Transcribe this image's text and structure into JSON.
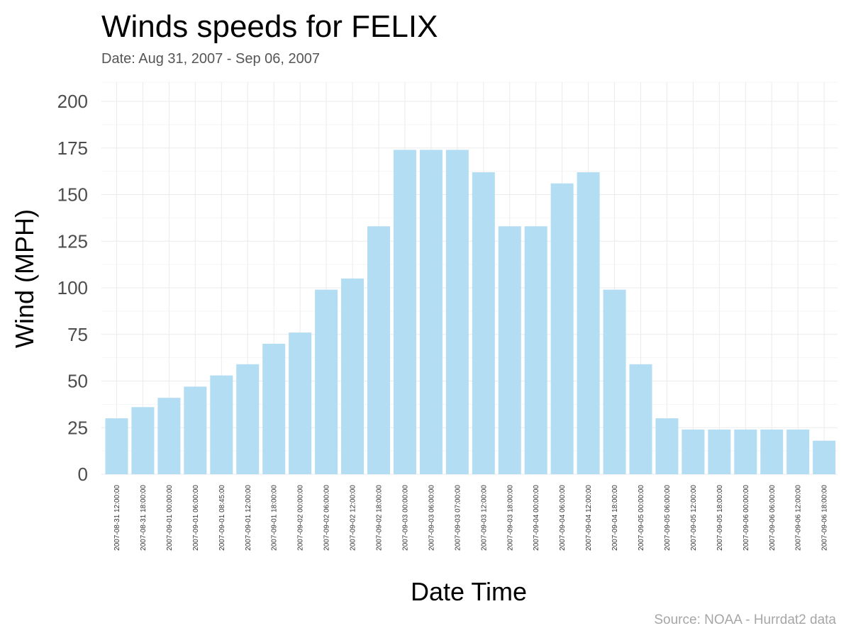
{
  "chart_data": {
    "type": "bar",
    "title": "Winds speeds for FELIX",
    "subtitle": "Date:  Aug 31, 2007 - Sep 06, 2007",
    "xlabel": "Date Time",
    "ylabel": "Wind (MPH)",
    "caption": "Source: NOAA - Hurrdat2 data",
    "ylim": [
      0,
      200
    ],
    "yticks": [
      0,
      25,
      50,
      75,
      100,
      125,
      150,
      175,
      200
    ],
    "grid": true,
    "bar_color": "#b3ddf2",
    "categories": [
      "2007-08-31 12:00:00",
      "2007-08-31 18:00:00",
      "2007-09-01 00:00:00",
      "2007-09-01 06:00:00",
      "2007-09-01 08:45:00",
      "2007-09-01 12:00:00",
      "2007-09-01 18:00:00",
      "2007-09-02 00:00:00",
      "2007-09-02 06:00:00",
      "2007-09-02 12:00:00",
      "2007-09-02 18:00:00",
      "2007-09-03 00:00:00",
      "2007-09-03 06:00:00",
      "2007-09-03 07:00:00",
      "2007-09-03 12:00:00",
      "2007-09-03 18:00:00",
      "2007-09-04 00:00:00",
      "2007-09-04 06:00:00",
      "2007-09-04 12:00:00",
      "2007-09-04 18:00:00",
      "2007-09-05 00:00:00",
      "2007-09-05 06:00:00",
      "2007-09-05 12:00:00",
      "2007-09-05 18:00:00",
      "2007-09-06 00:00:00",
      "2007-09-06 06:00:00",
      "2007-09-06 12:00:00",
      "2007-09-06 18:00:00"
    ],
    "values": [
      30,
      36,
      41,
      47,
      53,
      59,
      70,
      76,
      99,
      105,
      133,
      174,
      174,
      174,
      162,
      133,
      133,
      156,
      162,
      99,
      59,
      30,
      24,
      24,
      24,
      24,
      24,
      18
    ]
  }
}
